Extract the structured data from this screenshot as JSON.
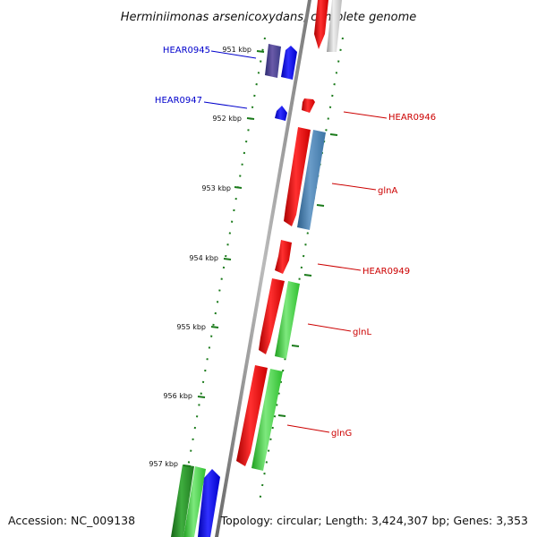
{
  "title": "Herminiimonas arsenicoxydans, complete genome",
  "footer": {
    "accession": "Accession: NC_009138",
    "topology": "Topology: circular; Length: 3,424,307 bp; Genes: 3,353"
  },
  "ticks": [
    "951 kbp",
    "952 kbp",
    "953 kbp",
    "954 kbp",
    "955 kbp",
    "956 kbp",
    "957 kbp"
  ],
  "gene_labels": {
    "hear0945": "HEAR0945",
    "hear0947": "HEAR0947",
    "hear0946": "HEAR0946",
    "glna": "glnA",
    "hear0949": "HEAR0949",
    "glnl": "glnL",
    "glng": "glnG"
  },
  "colors": {
    "left_label": "#0000cc",
    "right_label": "#cc0000",
    "tick": "#1a7a1a",
    "backbone": "#888888"
  }
}
